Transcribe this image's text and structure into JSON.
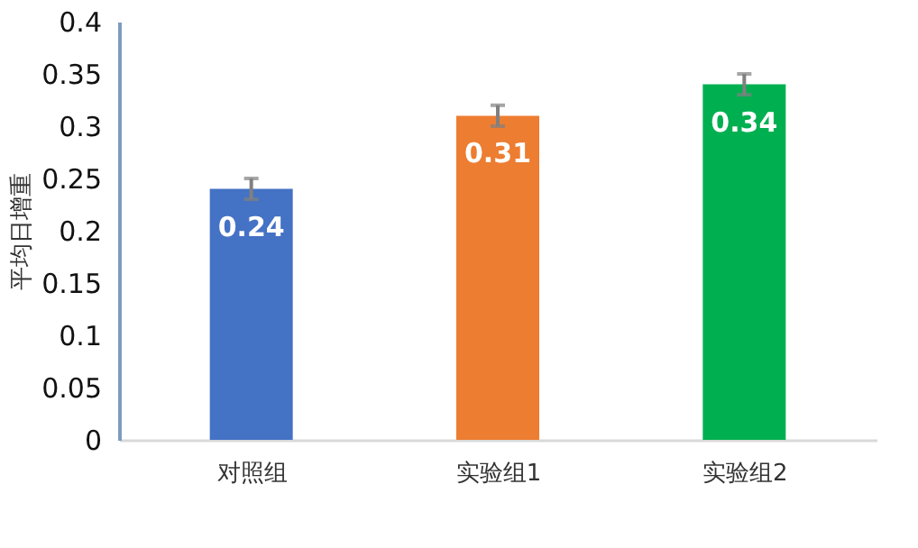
{
  "chart_data": {
    "type": "bar",
    "ylabel": "平均日增重",
    "categories": [
      "对照组",
      "实验组1",
      "实验组2"
    ],
    "values": [
      0.24,
      0.31,
      0.34
    ],
    "colors": [
      "#4472c4",
      "#ed7d31",
      "#00b050"
    ],
    "errors": [
      0.01,
      0.01,
      0.01
    ],
    "data_labels": true,
    "ylim": [
      0,
      0.4
    ],
    "yticks": [
      0,
      0.05,
      0.1,
      0.15,
      0.2,
      0.25,
      0.3,
      0.35,
      0.4
    ],
    "grid": false
  }
}
